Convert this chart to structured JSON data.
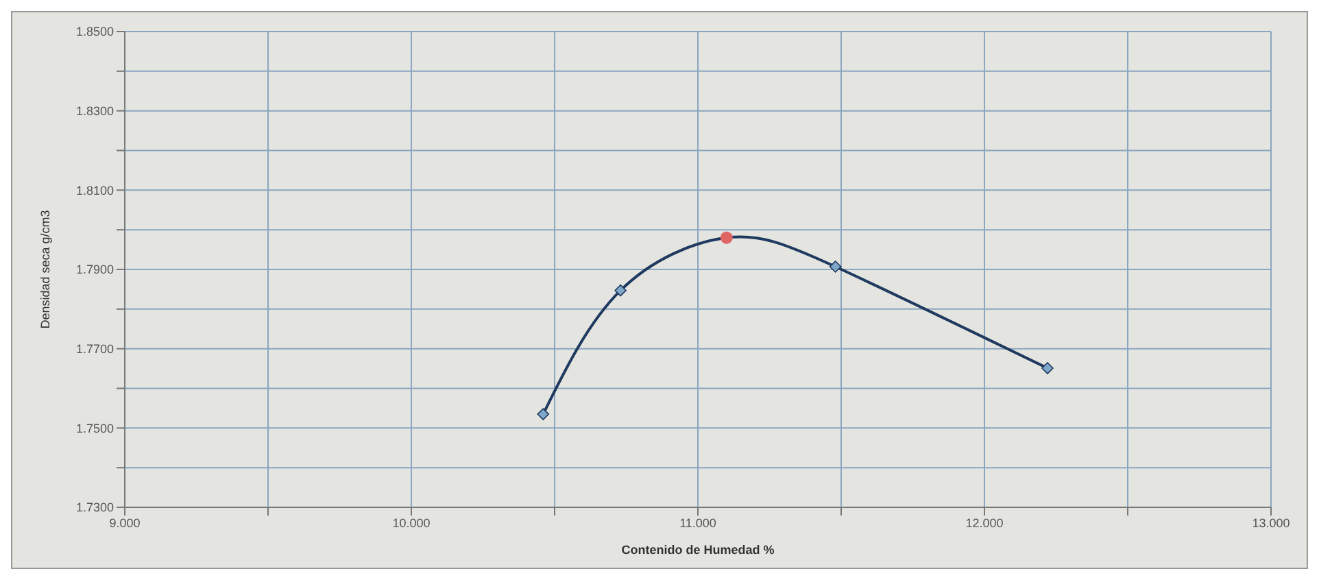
{
  "chart_data": {
    "type": "line",
    "xlabel": "Contenido de Humedad %",
    "ylabel": "Densidad seca g/cm3",
    "series": [
      {
        "color": "#1f3a5f",
        "marker": "diamond",
        "x": [
          10.46,
          10.73,
          11.1,
          11.48,
          12.22
        ],
        "values": [
          1.7535,
          1.7847,
          1.798,
          1.7907,
          1.7651
        ]
      },
      {
        "type": "scatter",
        "color": "#e06666",
        "marker": "circle",
        "x": [
          11.1
        ],
        "values": [
          1.798
        ]
      }
    ],
    "xlim": [
      9,
      13
    ],
    "xticks": [
      {
        "value": 9,
        "label": "9.000"
      },
      {
        "value": 9.5,
        "label": null
      },
      {
        "value": 10,
        "label": "10.000"
      },
      {
        "value": 10.5,
        "label": null
      },
      {
        "value": 11,
        "label": "11.000"
      },
      {
        "value": 11.5,
        "label": null
      },
      {
        "value": 12,
        "label": "12.000"
      },
      {
        "value": 12.5,
        "label": null
      },
      {
        "value": 13,
        "label": "13.000"
      }
    ],
    "ylim": [
      1.73,
      1.85
    ],
    "yticks": [
      {
        "value": 1.73,
        "label": "1.7300"
      },
      {
        "value": 1.74,
        "label": null
      },
      {
        "value": 1.75,
        "label": "1.7500"
      },
      {
        "value": 1.76,
        "label": null
      },
      {
        "value": 1.77,
        "label": "1.7700"
      },
      {
        "value": 1.78,
        "label": null
      },
      {
        "value": 1.79,
        "label": "1.7900"
      },
      {
        "value": 1.8,
        "label": null
      },
      {
        "value": 1.81,
        "label": "1.8100"
      },
      {
        "value": 1.82,
        "label": null
      },
      {
        "value": 1.83,
        "label": "1.8300"
      },
      {
        "value": 1.84,
        "label": null
      },
      {
        "value": 1.85,
        "label": "1.8500"
      }
    ],
    "grid": true
  }
}
